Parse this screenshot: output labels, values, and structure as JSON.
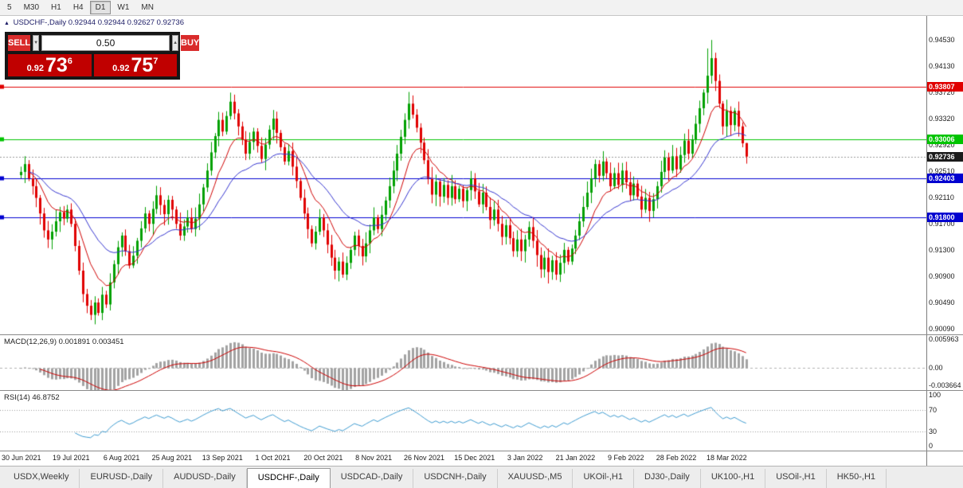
{
  "toolbar": {
    "timeframes": [
      "5",
      "M30",
      "H1",
      "H4",
      "D1",
      "W1",
      "MN"
    ],
    "active": "D1"
  },
  "header": {
    "marker": "▲",
    "title": "USDCHF-,Daily",
    "ohlc": "0.92944 0.92944 0.92627 0.92736"
  },
  "trade": {
    "sell_label": "SELL",
    "buy_label": "BUY",
    "volume": "0.50",
    "spinner_down": "▼",
    "spinner_up": "▲",
    "sell_price": {
      "prefix": "0.92",
      "big": "73",
      "sup": "6"
    },
    "buy_price": {
      "prefix": "0.92",
      "big": "75",
      "sup": "7"
    }
  },
  "tabs": {
    "items": [
      "USDX,Weekly",
      "EURUSD-,Daily",
      "AUDUSD-,Daily",
      "USDCHF-,Daily",
      "USDCAD-,Daily",
      "USDCNH-,Daily",
      "XAUUSD-,M5",
      "UKOil-,H1",
      "DJ30-,Daily",
      "UK100-,H1",
      "USOil-,H1",
      "HK50-,H1"
    ],
    "active": "USDCHF-,Daily"
  },
  "chart_data": {
    "type": "candlestick",
    "symbol": "USDCHF-",
    "timeframe": "Daily",
    "ohlc": {
      "open": "0.92944",
      "high": "0.92944",
      "low": "0.92627",
      "close": "0.92736"
    },
    "first_open": 0.9245,
    "closes": [
      0.925,
      0.9262,
      0.924,
      0.9228,
      0.921,
      0.9186,
      0.916,
      0.9146,
      0.9158,
      0.9174,
      0.9188,
      0.9178,
      0.9192,
      0.917,
      0.9136,
      0.9098,
      0.9062,
      0.9044,
      0.903,
      0.9049,
      0.9033,
      0.9061,
      0.9046,
      0.908,
      0.9108,
      0.9134,
      0.9152,
      0.9128,
      0.9106,
      0.9121,
      0.9144,
      0.9163,
      0.9186,
      0.917,
      0.9193,
      0.9214,
      0.9199,
      0.9185,
      0.9207,
      0.9192,
      0.917,
      0.9152,
      0.9166,
      0.918,
      0.9162,
      0.9178,
      0.92,
      0.9226,
      0.9252,
      0.928,
      0.9305,
      0.933,
      0.9312,
      0.9336,
      0.9358,
      0.934,
      0.932,
      0.93,
      0.9278,
      0.9296,
      0.9312,
      0.929,
      0.927,
      0.9292,
      0.9315,
      0.9332,
      0.931,
      0.9288,
      0.9266,
      0.9282,
      0.9258,
      0.9236,
      0.921,
      0.9186,
      0.9162,
      0.914,
      0.9158,
      0.918,
      0.916,
      0.9138,
      0.9118,
      0.9098,
      0.9112,
      0.9092,
      0.911,
      0.913,
      0.9152,
      0.9136,
      0.912,
      0.914,
      0.916,
      0.918,
      0.9162,
      0.9184,
      0.9206,
      0.9228,
      0.9252,
      0.9278,
      0.9304,
      0.933,
      0.9355,
      0.9338,
      0.9318,
      0.9295,
      0.9268,
      0.924,
      0.9215,
      0.9235,
      0.9212,
      0.923,
      0.921,
      0.9228,
      0.9208,
      0.9224,
      0.9205,
      0.9222,
      0.924,
      0.922,
      0.92,
      0.9218,
      0.9196,
      0.9176,
      0.9192,
      0.917,
      0.915,
      0.9168,
      0.9148,
      0.9128,
      0.9146,
      0.9128,
      0.9146,
      0.9165,
      0.9144,
      0.9122,
      0.91,
      0.9118,
      0.9096,
      0.9114,
      0.9092,
      0.911,
      0.913,
      0.9112,
      0.9132,
      0.9152,
      0.9174,
      0.9196,
      0.9218,
      0.924,
      0.9262,
      0.9244,
      0.9266,
      0.9248,
      0.9228,
      0.9248,
      0.923,
      0.9252,
      0.9234,
      0.9214,
      0.9232,
      0.9212,
      0.9192,
      0.921,
      0.919,
      0.9208,
      0.9228,
      0.925,
      0.9272,
      0.9252,
      0.9274,
      0.9254,
      0.9276,
      0.9298,
      0.9278,
      0.93,
      0.9324,
      0.9348,
      0.9372,
      0.9398,
      0.9425,
      0.939,
      0.9355,
      0.932,
      0.9344,
      0.9322,
      0.9344,
      0.932,
      0.9294,
      0.92736
    ],
    "last_candle": {
      "open": 0.92944,
      "high": 0.92944,
      "low": 0.92627,
      "close": 0.92736
    },
    "wick_overrides": {
      "18": {
        "low": 0.9022
      },
      "54": {
        "high": 0.9372
      },
      "83": {
        "low": 0.9087
      },
      "100": {
        "high": 0.9373
      },
      "137": {
        "low": 0.9084
      },
      "177": {
        "high": 0.944
      },
      "178": {
        "high": 0.9453
      }
    },
    "y_axis_ticks": [
      "0.94530",
      "0.94130",
      "0.93720",
      "0.93320",
      "0.92920",
      "0.92510",
      "0.92110",
      "0.91700",
      "0.91300",
      "0.90900",
      "0.90490",
      "0.90090"
    ],
    "levels": [
      {
        "value": 0.93807,
        "label": "0.93807",
        "color": "#e00000"
      },
      {
        "value": 0.93006,
        "label": "0.93006",
        "color": "#00c400"
      },
      {
        "value": 0.92403,
        "label": "0.92403",
        "color": "#0000d0"
      },
      {
        "value": 0.918,
        "label": "0.91800",
        "color": "#0000d0"
      }
    ],
    "bid": {
      "value": 0.92736,
      "label": "0.92736",
      "color": "#1b1b1b"
    },
    "colors": {
      "up": "#00a000",
      "down": "#e00000",
      "ma_fast": "#cf0000",
      "ma_slow": "#3535cf",
      "macd_hist": "#a3a3a3",
      "macd_signal": "#cc0000",
      "rsi": "#3e9bd0",
      "level_dotted": "#999999"
    },
    "ma_periods": {
      "fast": 10,
      "slow": 25
    },
    "price_range": {
      "top": 0.949,
      "bottom": 0.9
    },
    "x_labels": [
      "30 Jun 2021",
      "19 Jul 2021",
      "6 Aug 2021",
      "25 Aug 2021",
      "13 Sep 2021",
      "1 Oct 2021",
      "20 Oct 2021",
      "8 Nov 2021",
      "26 Nov 2021",
      "15 Dec 2021",
      "3 Jan 2022",
      "21 Jan 2022",
      "9 Feb 2022",
      "28 Feb 2022",
      "18 Mar 2022"
    ],
    "x_label_step": 13,
    "macd": {
      "header": "MACD(12,26,9) 0.001891 0.003451",
      "fast": 12,
      "slow": 26,
      "signal": 9,
      "axis": [
        {
          "v": 0.005963,
          "label": "0.005963"
        },
        {
          "v": 0,
          "label": "0.00"
        },
        {
          "v": -0.003664,
          "label": "-0.003664"
        }
      ],
      "range": {
        "max": 0.0062,
        "min": -0.0042
      }
    },
    "rsi": {
      "header": "RSI(14) 46.8752",
      "period": 14,
      "axis": [
        {
          "v": 100,
          "label": "100"
        },
        {
          "v": 70,
          "label": "70"
        },
        {
          "v": 30,
          "label": "30"
        },
        {
          "v": 0,
          "label": "0"
        }
      ],
      "levels": [
        70,
        30
      ]
    }
  }
}
